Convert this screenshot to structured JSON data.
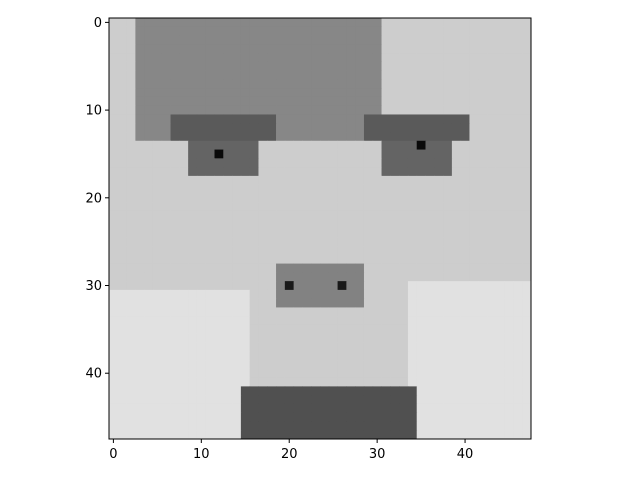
{
  "chart_data": {
    "type": "heatmap",
    "title": "",
    "xlabel": "",
    "ylabel": "",
    "colormap": "gray",
    "image_shape": [
      48,
      48
    ],
    "x_range": [
      -0.5,
      47.5
    ],
    "y_range": [
      -0.5,
      47.5
    ],
    "y_axis_inverted": true,
    "x_ticks": [
      0,
      10,
      20,
      30,
      40
    ],
    "y_ticks": [
      0,
      10,
      20,
      30,
      40
    ],
    "x_tick_labels": [
      "0",
      "10",
      "20",
      "30",
      "40"
    ],
    "y_tick_labels": [
      "0",
      "10",
      "20",
      "30",
      "40"
    ],
    "grid": false,
    "legend": "none",
    "intensity_range": [
      0,
      255
    ],
    "base_intensity": 205,
    "features": [
      {
        "kind": "hair",
        "row": [
          0,
          13
        ],
        "col": [
          3,
          30
        ],
        "intensity": 135
      },
      {
        "kind": "left-brow",
        "row": [
          11,
          13
        ],
        "col": [
          7,
          18
        ],
        "intensity": 90
      },
      {
        "kind": "right-brow",
        "row": [
          11,
          13
        ],
        "col": [
          29,
          40
        ],
        "intensity": 90
      },
      {
        "kind": "left-eye",
        "row": [
          14,
          17
        ],
        "col": [
          9,
          16
        ],
        "intensity": 100
      },
      {
        "kind": "right-eye",
        "row": [
          14,
          17
        ],
        "col": [
          31,
          38
        ],
        "intensity": 100
      },
      {
        "kind": "left-pupil",
        "row": [
          15,
          15
        ],
        "col": [
          12,
          12
        ],
        "intensity": 10
      },
      {
        "kind": "right-pupil",
        "row": [
          14,
          14
        ],
        "col": [
          35,
          35
        ],
        "intensity": 10
      },
      {
        "kind": "nose",
        "row": [
          28,
          32
        ],
        "col": [
          19,
          28
        ],
        "intensity": 130
      },
      {
        "kind": "left-nostril",
        "row": [
          30,
          30
        ],
        "col": [
          20,
          20
        ],
        "intensity": 25
      },
      {
        "kind": "right-nostril",
        "row": [
          30,
          30
        ],
        "col": [
          26,
          26
        ],
        "intensity": 25
      },
      {
        "kind": "left-hand",
        "row": [
          31,
          47
        ],
        "col": [
          0,
          15
        ],
        "intensity": 225
      },
      {
        "kind": "right-hand",
        "row": [
          30,
          47
        ],
        "col": [
          34,
          47
        ],
        "intensity": 225
      },
      {
        "kind": "mouth-shadow",
        "row": [
          42,
          47
        ],
        "col": [
          15,
          34
        ],
        "intensity": 80
      }
    ]
  }
}
